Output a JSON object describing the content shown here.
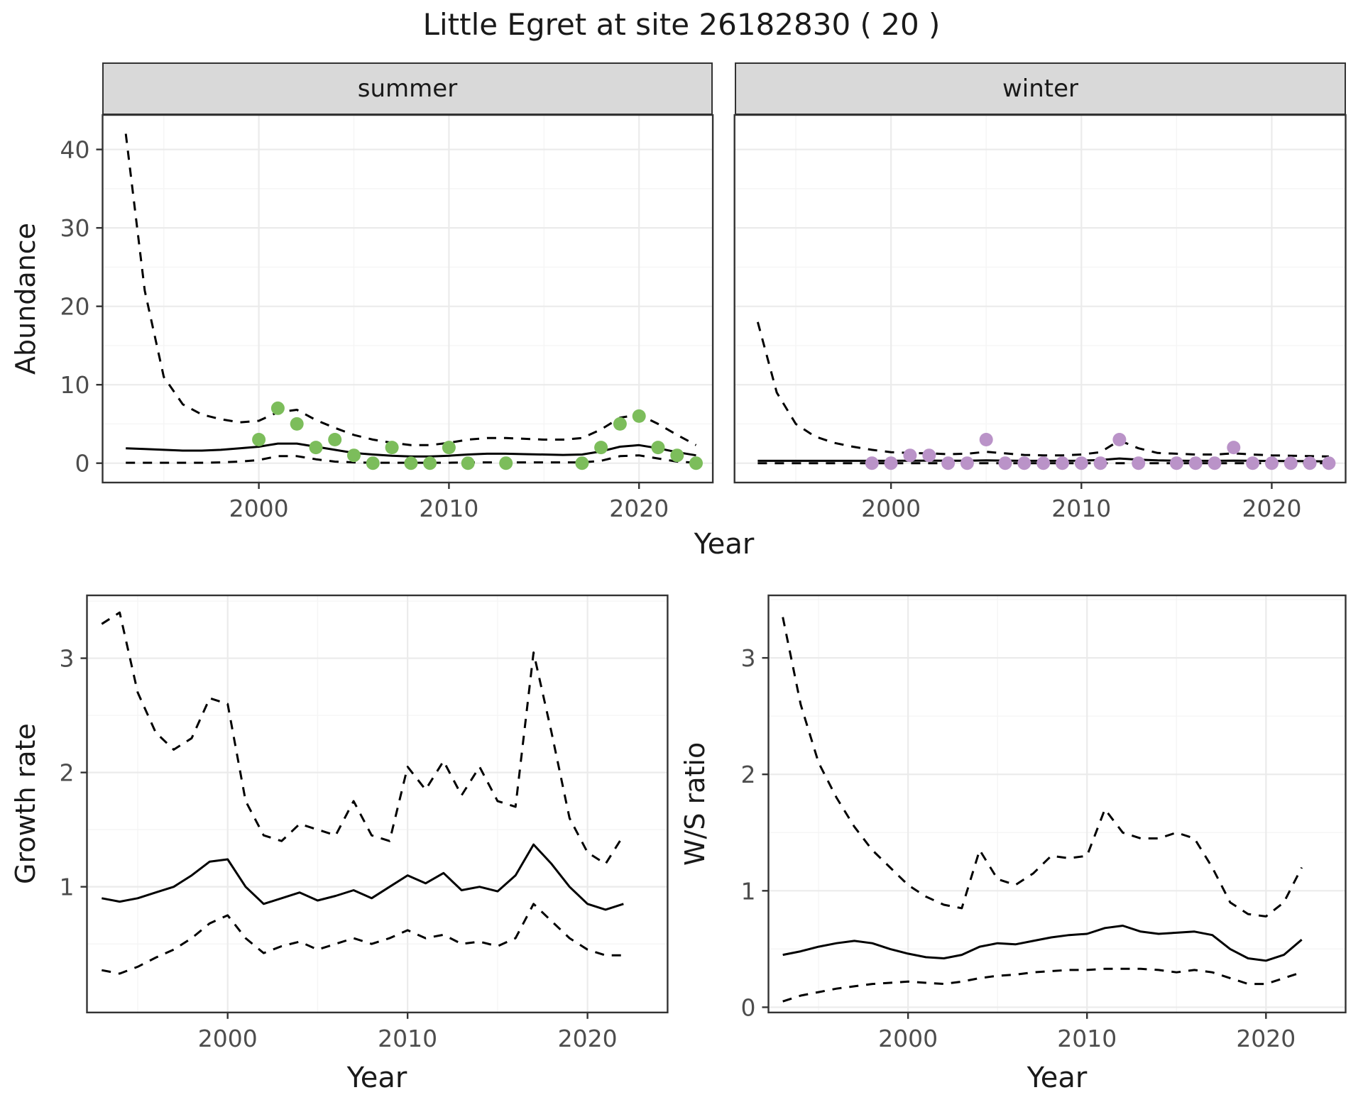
{
  "title": "Little Egret at site 26182830 ( 20 )",
  "colors": {
    "summer_point": "#7CBD5B",
    "winter_point": "#BA93C8",
    "line": "#000000",
    "grid_major": "#EBEBEB",
    "grid_minor": "#F5F5F5",
    "panel_border": "#333333",
    "tick_mark": "#333333",
    "strip_fill": "#D9D9D9",
    "axis_text": "#4D4D4D",
    "title_text": "#1A1A1A"
  },
  "top": {
    "ylabel": "Abundance",
    "xlabel": "Year",
    "facets": [
      {
        "label": "summer"
      },
      {
        "label": "winter"
      }
    ]
  },
  "bottom_left": {
    "ylabel": "Growth rate",
    "xlabel": "Year"
  },
  "bottom_right": {
    "ylabel": "W/S ratio",
    "xlabel": "Year"
  },
  "chart_data": [
    {
      "id": "summer",
      "type": "line",
      "title": "summer",
      "xlabel": "Year",
      "ylabel": "Abundance",
      "legend": "none",
      "grid": true,
      "xlim": [
        1991.78,
        2023.88
      ],
      "ylim": [
        -2.47,
        44.4
      ],
      "xticks": [
        2000,
        2010,
        2020
      ],
      "yticks": [
        0,
        10,
        20,
        30,
        40
      ],
      "x_minor": [
        1995,
        2005,
        2015
      ],
      "y_minor": [
        5,
        15,
        25,
        35
      ],
      "years": [
        1993,
        1994,
        1995,
        1996,
        1997,
        1998,
        1999,
        2000,
        2001,
        2002,
        2003,
        2004,
        2005,
        2006,
        2007,
        2008,
        2009,
        2010,
        2011,
        2012,
        2013,
        2014,
        2015,
        2016,
        2017,
        2018,
        2019,
        2020,
        2021,
        2022,
        2023
      ],
      "series": [
        {
          "name": "upper_ci",
          "style": "dashed",
          "values": [
            42,
            22,
            11,
            7.5,
            6.2,
            5.6,
            5.2,
            5.4,
            6.5,
            6.8,
            5.5,
            4.5,
            3.6,
            3.0,
            2.6,
            2.3,
            2.3,
            2.6,
            3.0,
            3.2,
            3.2,
            3.1,
            3.0,
            3.0,
            3.2,
            4.3,
            5.8,
            6.2,
            5.0,
            3.6,
            2.3
          ]
        },
        {
          "name": "fit",
          "style": "solid",
          "values": [
            1.9,
            1.8,
            1.7,
            1.6,
            1.6,
            1.7,
            1.9,
            2.1,
            2.5,
            2.5,
            2.1,
            1.7,
            1.3,
            1.1,
            0.95,
            0.85,
            0.85,
            0.95,
            1.1,
            1.2,
            1.2,
            1.15,
            1.1,
            1.05,
            1.1,
            1.5,
            2.1,
            2.3,
            1.9,
            1.4,
            1.0
          ]
        },
        {
          "name": "lower_ci",
          "style": "dashed",
          "values": [
            0.05,
            0.05,
            0.05,
            0.05,
            0.05,
            0.1,
            0.2,
            0.4,
            0.9,
            0.9,
            0.5,
            0.2,
            0.1,
            0.05,
            0.05,
            0.05,
            0.05,
            0.05,
            0.1,
            0.1,
            0.1,
            0.1,
            0.1,
            0.1,
            0.1,
            0.3,
            0.9,
            1.0,
            0.6,
            0.2,
            0.05
          ]
        }
      ],
      "points": {
        "color": "#7CBD5B",
        "data": [
          [
            2000,
            3
          ],
          [
            2001,
            7
          ],
          [
            2002,
            5
          ],
          [
            2003,
            2
          ],
          [
            2004,
            3
          ],
          [
            2005,
            1
          ],
          [
            2006,
            0
          ],
          [
            2007,
            2
          ],
          [
            2008,
            0
          ],
          [
            2009,
            0
          ],
          [
            2010,
            2
          ],
          [
            2011,
            0
          ],
          [
            2013,
            0
          ],
          [
            2017,
            0
          ],
          [
            2018,
            2
          ],
          [
            2019,
            5
          ],
          [
            2020,
            6
          ],
          [
            2021,
            2
          ],
          [
            2022,
            1
          ],
          [
            2023,
            0
          ]
        ]
      }
    },
    {
      "id": "winter",
      "type": "line",
      "title": "winter",
      "xlabel": "Year",
      "ylabel": "Abundance",
      "legend": "none",
      "grid": true,
      "xlim": [
        1991.78,
        2023.88
      ],
      "ylim": [
        -2.47,
        44.4
      ],
      "xticks": [
        2000,
        2010,
        2020
      ],
      "yticks": [
        0,
        10,
        20,
        30,
        40
      ],
      "x_minor": [
        1995,
        2005,
        2015
      ],
      "y_minor": [
        5,
        15,
        25,
        35
      ],
      "years": [
        1993,
        1994,
        1995,
        1996,
        1997,
        1998,
        1999,
        2000,
        2001,
        2002,
        2003,
        2004,
        2005,
        2006,
        2007,
        2008,
        2009,
        2010,
        2011,
        2012,
        2013,
        2014,
        2015,
        2016,
        2017,
        2018,
        2019,
        2020,
        2021,
        2022,
        2023
      ],
      "series": [
        {
          "name": "upper_ci",
          "style": "dashed",
          "values": [
            18,
            9,
            5,
            3.4,
            2.6,
            2.1,
            1.7,
            1.4,
            1.3,
            1.25,
            1.15,
            1.2,
            1.45,
            1.25,
            1.05,
            1.0,
            1.0,
            1.1,
            1.4,
            2.9,
            1.9,
            1.3,
            1.2,
            1.1,
            1.1,
            1.25,
            1.1,
            1.0,
            0.95,
            0.9,
            0.85
          ]
        },
        {
          "name": "fit",
          "style": "solid",
          "values": [
            0.3,
            0.3,
            0.3,
            0.3,
            0.3,
            0.3,
            0.3,
            0.3,
            0.32,
            0.33,
            0.32,
            0.32,
            0.35,
            0.33,
            0.3,
            0.3,
            0.3,
            0.32,
            0.4,
            0.6,
            0.45,
            0.35,
            0.32,
            0.3,
            0.3,
            0.33,
            0.3,
            0.28,
            0.26,
            0.25,
            0.23
          ]
        },
        {
          "name": "lower_ci",
          "style": "dashed",
          "values": [
            0,
            0,
            0,
            0,
            0,
            0,
            0,
            0,
            0,
            0,
            0,
            0,
            0,
            0,
            0,
            0,
            0,
            0,
            0,
            0,
            0,
            0,
            0,
            0,
            0,
            0,
            0,
            0,
            0,
            0,
            0
          ]
        }
      ],
      "points": {
        "color": "#BA93C8",
        "data": [
          [
            1999,
            0
          ],
          [
            2000,
            0
          ],
          [
            2001,
            1
          ],
          [
            2002,
            1
          ],
          [
            2003,
            0
          ],
          [
            2004,
            0
          ],
          [
            2005,
            3
          ],
          [
            2006,
            0
          ],
          [
            2007,
            0
          ],
          [
            2008,
            0
          ],
          [
            2009,
            0
          ],
          [
            2010,
            0
          ],
          [
            2011,
            0
          ],
          [
            2012,
            3
          ],
          [
            2013,
            0
          ],
          [
            2015,
            0
          ],
          [
            2016,
            0
          ],
          [
            2017,
            0
          ],
          [
            2018,
            2
          ],
          [
            2019,
            0
          ],
          [
            2020,
            0
          ],
          [
            2021,
            0
          ],
          [
            2022,
            0
          ],
          [
            2023,
            0
          ]
        ]
      }
    },
    {
      "id": "growth",
      "type": "line",
      "title": "Growth rate",
      "xlabel": "Year",
      "ylabel": "Growth rate",
      "legend": "none",
      "grid": true,
      "xlim": [
        1992.18,
        2024.45
      ],
      "ylim": [
        -0.1,
        3.55
      ],
      "xticks": [
        2000,
        2010,
        2020
      ],
      "yticks": [
        1,
        2,
        3
      ],
      "x_minor": [
        1995,
        2005,
        2015
      ],
      "y_minor": [
        0.5,
        1.5,
        2.5,
        3.5
      ],
      "years": [
        1993,
        1994,
        1995,
        1996,
        1997,
        1998,
        1999,
        2000,
        2001,
        2002,
        2003,
        2004,
        2005,
        2006,
        2007,
        2008,
        2009,
        2010,
        2011,
        2012,
        2013,
        2014,
        2015,
        2016,
        2017,
        2018,
        2019,
        2020,
        2021,
        2022
      ],
      "series": [
        {
          "name": "upper_ci",
          "style": "dashed",
          "values": [
            3.3,
            3.4,
            2.7,
            2.35,
            2.2,
            2.3,
            2.65,
            2.6,
            1.75,
            1.45,
            1.4,
            1.55,
            1.5,
            1.45,
            1.75,
            1.45,
            1.4,
            2.05,
            1.85,
            2.1,
            1.8,
            2.05,
            1.75,
            1.7,
            3.05,
            2.35,
            1.6,
            1.3,
            1.2,
            1.45
          ]
        },
        {
          "name": "fit",
          "style": "solid",
          "values": [
            0.9,
            0.87,
            0.9,
            0.95,
            1.0,
            1.1,
            1.22,
            1.24,
            1.0,
            0.85,
            0.9,
            0.95,
            0.88,
            0.92,
            0.97,
            0.9,
            1.0,
            1.1,
            1.03,
            1.12,
            0.97,
            1.0,
            0.96,
            1.1,
            1.37,
            1.2,
            1.0,
            0.85,
            0.8,
            0.85
          ]
        },
        {
          "name": "lower_ci",
          "style": "dashed",
          "values": [
            0.27,
            0.24,
            0.3,
            0.38,
            0.45,
            0.55,
            0.68,
            0.75,
            0.55,
            0.42,
            0.48,
            0.52,
            0.45,
            0.5,
            0.55,
            0.5,
            0.55,
            0.62,
            0.55,
            0.58,
            0.5,
            0.52,
            0.48,
            0.55,
            0.85,
            0.7,
            0.55,
            0.45,
            0.4,
            0.4
          ]
        }
      ],
      "points": null
    },
    {
      "id": "ws",
      "type": "line",
      "title": "W/S ratio",
      "xlabel": "Year",
      "ylabel": "W/S ratio",
      "legend": "none",
      "grid": true,
      "xlim": [
        1992.2,
        2024.45
      ],
      "ylim": [
        -0.045,
        3.537
      ],
      "xticks": [
        2000,
        2010,
        2020
      ],
      "yticks": [
        0,
        1,
        2,
        3
      ],
      "x_minor": [
        1995,
        2005,
        2015
      ],
      "y_minor": [
        0.5,
        1.5,
        2.5,
        3.5
      ],
      "years": [
        1993,
        1994,
        1995,
        1996,
        1997,
        1998,
        1999,
        2000,
        2001,
        2002,
        2003,
        2004,
        2005,
        2006,
        2007,
        2008,
        2009,
        2010,
        2011,
        2012,
        2013,
        2014,
        2015,
        2016,
        2017,
        2018,
        2019,
        2020,
        2021,
        2022
      ],
      "series": [
        {
          "name": "upper_ci",
          "style": "dashed",
          "values": [
            3.35,
            2.6,
            2.1,
            1.8,
            1.55,
            1.35,
            1.2,
            1.05,
            0.95,
            0.88,
            0.85,
            1.35,
            1.1,
            1.05,
            1.15,
            1.3,
            1.28,
            1.3,
            1.7,
            1.5,
            1.45,
            1.45,
            1.5,
            1.45,
            1.2,
            0.9,
            0.8,
            0.78,
            0.9,
            1.2
          ]
        },
        {
          "name": "fit",
          "style": "solid",
          "values": [
            0.45,
            0.48,
            0.52,
            0.55,
            0.57,
            0.55,
            0.5,
            0.46,
            0.43,
            0.42,
            0.45,
            0.52,
            0.55,
            0.54,
            0.57,
            0.6,
            0.62,
            0.63,
            0.68,
            0.7,
            0.65,
            0.63,
            0.64,
            0.65,
            0.62,
            0.5,
            0.42,
            0.4,
            0.45,
            0.58
          ]
        },
        {
          "name": "lower_ci",
          "style": "dashed",
          "values": [
            0.05,
            0.1,
            0.13,
            0.16,
            0.18,
            0.2,
            0.21,
            0.22,
            0.21,
            0.2,
            0.22,
            0.25,
            0.27,
            0.28,
            0.3,
            0.31,
            0.32,
            0.32,
            0.33,
            0.33,
            0.33,
            0.32,
            0.3,
            0.32,
            0.3,
            0.25,
            0.2,
            0.2,
            0.25,
            0.3
          ]
        }
      ],
      "points": null
    }
  ]
}
